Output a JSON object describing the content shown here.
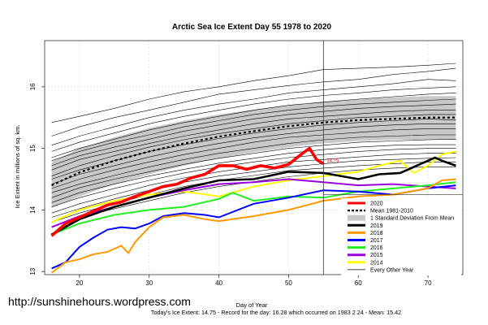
{
  "chart_data": {
    "type": "line",
    "title": "Arctic Sea Ice Extent Day 55 1978 to 2020",
    "xlabel": "Day of Year",
    "ylabel": "Ice Extent in millions of sq. km.",
    "xlim": [
      15,
      75
    ],
    "ylim": [
      12.95,
      16.75
    ],
    "xticks": [
      20,
      30,
      40,
      50,
      60,
      70
    ],
    "yticks": [
      13,
      14,
      15,
      16
    ],
    "current_day": 55,
    "annotation": {
      "text": "14.75",
      "x": 55,
      "y": 14.75
    },
    "mean_band": {
      "label": "1 Standard Deviation From Mean",
      "x": [
        16,
        20,
        25,
        30,
        35,
        40,
        45,
        50,
        55,
        60,
        65,
        70,
        74
      ],
      "upper": [
        14.78,
        15.0,
        15.18,
        15.33,
        15.45,
        15.55,
        15.63,
        15.7,
        15.76,
        15.8,
        15.83,
        15.85,
        15.85
      ],
      "lower": [
        14.03,
        14.22,
        14.42,
        14.58,
        14.72,
        14.84,
        14.94,
        15.02,
        15.08,
        15.12,
        15.14,
        15.14,
        15.14
      ]
    },
    "series": [
      {
        "name": "2020",
        "color": "#ff0000",
        "x": [
          16,
          18,
          20,
          22,
          24,
          26,
          28,
          30,
          32,
          34,
          36,
          38,
          40,
          42,
          44,
          46,
          48,
          50,
          52,
          53,
          54,
          55
        ],
        "values": [
          13.58,
          13.78,
          13.88,
          13.98,
          14.08,
          14.13,
          14.22,
          14.3,
          14.38,
          14.42,
          14.52,
          14.58,
          14.72,
          14.72,
          14.66,
          14.72,
          14.68,
          14.74,
          14.92,
          15.0,
          14.82,
          14.75
        ]
      },
      {
        "name": "Mean 1981-2010",
        "color": "#000000",
        "dashed": true,
        "x": [
          16,
          20,
          25,
          30,
          35,
          40,
          45,
          50,
          55,
          60,
          65,
          70,
          74
        ],
        "values": [
          14.4,
          14.61,
          14.8,
          14.95,
          15.08,
          15.19,
          15.28,
          15.36,
          15.42,
          15.46,
          15.48,
          15.5,
          15.5
        ]
      },
      {
        "name": "2019",
        "color": "#000000",
        "x": [
          16,
          20,
          25,
          30,
          35,
          40,
          45,
          50,
          55,
          60,
          63,
          66,
          69,
          71,
          72,
          74
        ],
        "values": [
          13.6,
          13.85,
          14.05,
          14.2,
          14.35,
          14.48,
          14.5,
          14.62,
          14.6,
          14.5,
          14.58,
          14.6,
          14.75,
          14.85,
          14.8,
          14.72
        ]
      },
      {
        "name": "2018",
        "color": "#ff9900",
        "x": [
          16,
          18,
          20,
          22,
          24,
          26,
          27,
          28,
          30,
          32,
          35,
          38,
          40,
          45,
          50,
          55,
          60,
          65,
          70,
          72,
          74
        ],
        "values": [
          12.98,
          13.15,
          13.2,
          13.28,
          13.32,
          13.42,
          13.3,
          13.48,
          13.72,
          13.88,
          13.92,
          13.85,
          13.82,
          13.9,
          14.0,
          14.15,
          14.22,
          14.25,
          14.35,
          14.48,
          14.5
        ]
      },
      {
        "name": "2017",
        "color": "#0000ff",
        "x": [
          16,
          18,
          20,
          22,
          24,
          26,
          28,
          30,
          32,
          35,
          38,
          40,
          45,
          50,
          55,
          60,
          65,
          70,
          74
        ],
        "values": [
          13.05,
          13.15,
          13.4,
          13.55,
          13.68,
          13.72,
          13.7,
          13.78,
          13.9,
          13.95,
          13.92,
          13.88,
          14.1,
          14.2,
          14.32,
          14.3,
          14.25,
          14.35,
          14.4
        ]
      },
      {
        "name": "2016",
        "color": "#22ee22",
        "x": [
          16,
          20,
          25,
          30,
          35,
          40,
          42,
          45,
          50,
          55,
          60,
          65,
          70,
          74
        ],
        "values": [
          13.6,
          13.78,
          13.92,
          14.0,
          14.05,
          14.18,
          14.28,
          14.15,
          14.22,
          14.2,
          14.3,
          14.35,
          14.4,
          14.45
        ]
      },
      {
        "name": "2015",
        "color": "#9900dd",
        "x": [
          16,
          20,
          25,
          30,
          35,
          40,
          45,
          50,
          55,
          60,
          65,
          70,
          74
        ],
        "values": [
          13.72,
          13.9,
          14.05,
          14.2,
          14.32,
          14.42,
          14.45,
          14.5,
          14.45,
          14.4,
          14.42,
          14.38,
          14.35
        ]
      },
      {
        "name": "2014",
        "color": "#ffff00",
        "x": [
          16,
          20,
          25,
          30,
          35,
          40,
          45,
          50,
          55,
          60,
          63,
          66,
          68,
          70,
          72,
          74
        ],
        "values": [
          13.8,
          14.0,
          14.15,
          14.25,
          14.3,
          14.22,
          14.38,
          14.48,
          14.55,
          14.62,
          14.72,
          14.8,
          14.6,
          14.72,
          14.9,
          14.95
        ]
      }
    ],
    "legend": {
      "position": "bottom-right",
      "entries": [
        {
          "label": "2020",
          "color": "#ff0000",
          "style": "line"
        },
        {
          "label": "Mean 1981-2010",
          "color": "#000000",
          "style": "dashed"
        },
        {
          "label": "1 Standard Deviation From Mean",
          "color": "#c8c8c8",
          "style": "box"
        },
        {
          "label": "2019",
          "color": "#000000",
          "style": "line"
        },
        {
          "label": "2018",
          "color": "#ff9900",
          "style": "line"
        },
        {
          "label": "2017",
          "color": "#0000ff",
          "style": "line"
        },
        {
          "label": "2016",
          "color": "#22ee22",
          "style": "line"
        },
        {
          "label": "2015",
          "color": "#9900dd",
          "style": "line"
        },
        {
          "label": "2014",
          "color": "#ffff00",
          "style": "line"
        },
        {
          "label": "Every Other Year",
          "color": "#000000",
          "style": "thin"
        }
      ]
    },
    "background_years": {
      "label": "Every Other Year",
      "color": "#000000",
      "count": 20,
      "x": [
        16,
        20,
        25,
        30,
        35,
        40,
        45,
        50,
        55,
        60,
        65,
        70,
        74
      ],
      "lines": [
        [
          15.42,
          15.52,
          15.65,
          15.8,
          15.92,
          16.0,
          16.1,
          16.18,
          16.28,
          16.3,
          16.32,
          16.35,
          16.38
        ],
        [
          15.2,
          15.35,
          15.5,
          15.62,
          15.75,
          15.88,
          15.95,
          16.02,
          16.08,
          16.12,
          16.2,
          16.25,
          16.3
        ],
        [
          15.05,
          15.2,
          15.35,
          15.5,
          15.62,
          15.72,
          15.8,
          15.9,
          15.95,
          16.0,
          16.05,
          16.12,
          16.1
        ],
        [
          14.95,
          15.1,
          15.25,
          15.4,
          15.52,
          15.62,
          15.72,
          15.8,
          15.86,
          15.9,
          15.95,
          15.98,
          16.0
        ],
        [
          14.85,
          15.0,
          15.15,
          15.3,
          15.42,
          15.52,
          15.62,
          15.7,
          15.75,
          15.8,
          15.84,
          15.88,
          15.9
        ],
        [
          14.8,
          14.95,
          15.1,
          15.22,
          15.35,
          15.45,
          15.55,
          15.62,
          15.68,
          15.72,
          15.75,
          15.78,
          15.8
        ],
        [
          14.72,
          14.88,
          15.02,
          15.15,
          15.28,
          15.38,
          15.48,
          15.55,
          15.6,
          15.65,
          15.68,
          15.7,
          15.72
        ],
        [
          14.65,
          14.82,
          14.95,
          15.08,
          15.2,
          15.3,
          15.4,
          15.48,
          15.52,
          15.56,
          15.6,
          15.62,
          15.62
        ],
        [
          14.55,
          14.72,
          14.88,
          15.02,
          15.14,
          15.24,
          15.32,
          15.4,
          15.45,
          15.5,
          15.52,
          15.55,
          15.55
        ],
        [
          14.5,
          14.65,
          14.8,
          14.95,
          15.06,
          15.16,
          15.25,
          15.32,
          15.38,
          15.42,
          15.45,
          15.48,
          15.46
        ],
        [
          14.42,
          14.58,
          14.72,
          14.86,
          14.98,
          15.08,
          15.17,
          15.24,
          15.3,
          15.35,
          15.38,
          15.4,
          15.4
        ],
        [
          14.35,
          14.5,
          14.65,
          14.78,
          14.9,
          15.0,
          15.1,
          15.18,
          15.22,
          15.26,
          15.3,
          15.32,
          15.32
        ],
        [
          14.28,
          14.42,
          14.56,
          14.7,
          14.82,
          14.92,
          15.0,
          15.08,
          15.14,
          15.18,
          15.2,
          15.22,
          15.22
        ],
        [
          14.2,
          14.36,
          14.5,
          14.62,
          14.74,
          14.84,
          14.92,
          15.0,
          15.05,
          15.1,
          15.12,
          15.14,
          15.15
        ],
        [
          14.12,
          14.28,
          14.42,
          14.55,
          14.66,
          14.76,
          14.84,
          14.92,
          14.98,
          15.02,
          15.05,
          15.06,
          15.06
        ],
        [
          14.05,
          14.2,
          14.35,
          14.48,
          14.6,
          14.7,
          14.78,
          14.85,
          14.9,
          14.95,
          14.98,
          15.0,
          15.0
        ],
        [
          13.95,
          14.1,
          14.25,
          14.4,
          14.52,
          14.62,
          14.7,
          14.78,
          14.82,
          14.86,
          14.9,
          14.92,
          14.92
        ],
        [
          13.88,
          14.02,
          14.18,
          14.32,
          14.45,
          14.55,
          14.62,
          14.7,
          14.75,
          14.8,
          14.82,
          14.84,
          14.85
        ],
        [
          13.8,
          13.95,
          14.1,
          14.25,
          14.38,
          14.48,
          14.56,
          14.64,
          14.68,
          14.72,
          14.75,
          14.78,
          14.78
        ],
        [
          13.72,
          13.88,
          14.02,
          14.15,
          14.28,
          14.38,
          14.46,
          14.54,
          14.6,
          14.65,
          14.68,
          14.7,
          14.7
        ]
      ]
    }
  },
  "url_text": "http://sunshinehours.wordpress.com",
  "footer": "Today's Ice Extent: 14.75  - Record for the day: 16.28 which occurred on 1983 2 24  - Mean: 15.42"
}
